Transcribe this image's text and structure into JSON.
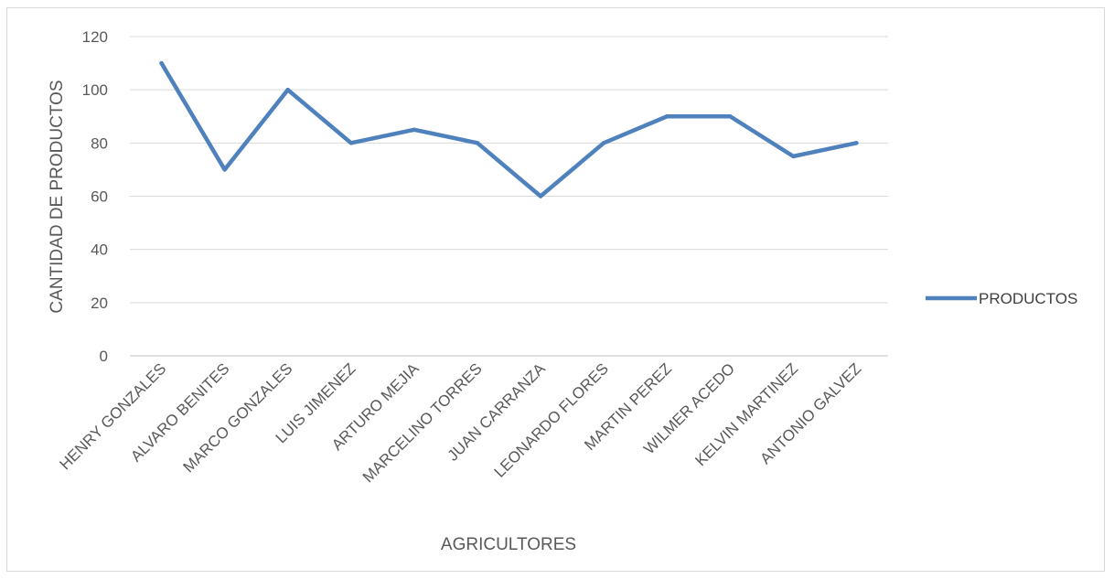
{
  "chart_data": {
    "type": "line",
    "title": "",
    "xlabel": "AGRICULTORES",
    "ylabel": "CANTIDAD DE PRODUCTOS",
    "ylim": [
      0,
      120
    ],
    "yticks": [
      0,
      20,
      40,
      60,
      80,
      100,
      120
    ],
    "grid": true,
    "legend_position": "right",
    "categories": [
      "HENRY GONZALES",
      "ALVARO BENITES",
      "MARCO GONZALES",
      "LUIS JIMENEZ",
      "ARTURO MEJIA",
      "MARCELINO TORRES",
      "JUAN CARRANZA",
      "LEONARDO FLORES",
      "MARTIN PEREZ",
      "WILMER ACEDO",
      "KELVIN MARTINEZ",
      "ANTONIO GALVEZ"
    ],
    "series": [
      {
        "name": "PRODUCTOS",
        "color": "#4f81bd",
        "values": [
          110,
          70,
          100,
          80,
          85,
          80,
          60,
          80,
          90,
          90,
          75,
          80
        ]
      }
    ]
  }
}
